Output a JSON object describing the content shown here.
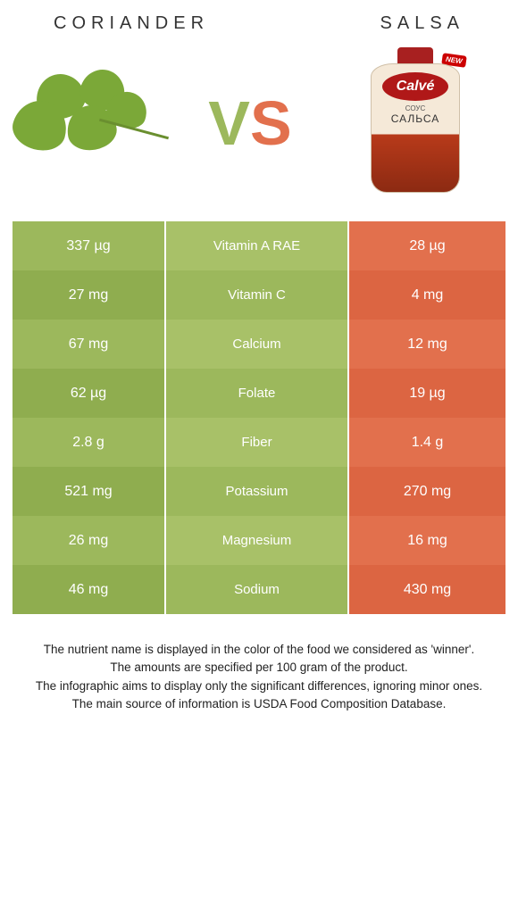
{
  "header": {
    "left_title": "CORIANDER",
    "right_title": "SALSA"
  },
  "vs": {
    "v_letter": "V",
    "s_letter": "S",
    "v_color": "#9cb85c",
    "s_color": "#e2704d"
  },
  "colors": {
    "left_odd": "#9cb85c",
    "left_even": "#8fad4f",
    "right_odd": "#e2704d",
    "right_even": "#dc6542",
    "mid_odd": "#a8c168",
    "mid_even": "#9cb85c",
    "winner_left_text": "#ffffff",
    "winner_right_text": "#ffffff"
  },
  "salsa_product": {
    "brand": "Calvé",
    "line1": "СОУС",
    "line2": "САЛЬСА",
    "badge": "NEW"
  },
  "rows": [
    {
      "left": "337 µg",
      "label": "Vitamin A RAE",
      "right": "28 µg",
      "winner": "left"
    },
    {
      "left": "27 mg",
      "label": "Vitamin C",
      "right": "4 mg",
      "winner": "left"
    },
    {
      "left": "67 mg",
      "label": "Calcium",
      "right": "12 mg",
      "winner": "left"
    },
    {
      "left": "62 µg",
      "label": "Folate",
      "right": "19 µg",
      "winner": "left"
    },
    {
      "left": "2.8 g",
      "label": "Fiber",
      "right": "1.4 g",
      "winner": "left"
    },
    {
      "left": "521 mg",
      "label": "Potassium",
      "right": "270 mg",
      "winner": "left"
    },
    {
      "left": "26 mg",
      "label": "Magnesium",
      "right": "16 mg",
      "winner": "left"
    },
    {
      "left": "46 mg",
      "label": "Sodium",
      "right": "430 mg",
      "winner": "right"
    }
  ],
  "footer": {
    "line1": "The nutrient name is displayed in the color of the food we considered as 'winner'.",
    "line2": "The amounts are specified per 100 gram of the product.",
    "line3": "The infographic aims to display only the significant differences, ignoring minor ones.",
    "line4": "The main source of information is USDA Food Composition Database."
  }
}
